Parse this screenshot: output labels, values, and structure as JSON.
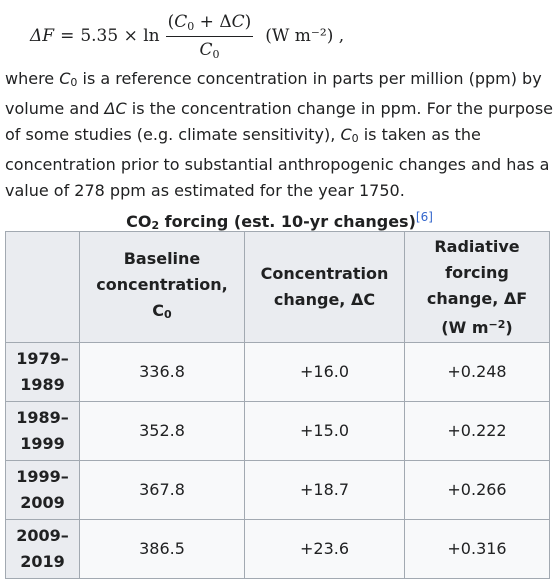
{
  "formula": {
    "lhs": "ΔF",
    "eq": "=",
    "coefficient": "5.35 × ln",
    "numerator": "(C0 + ΔC)",
    "denominator": "C0",
    "units": "(W m⁻²) ,"
  },
  "paragraph": {
    "t1": "where ",
    "c0": "C",
    "c0_sub": "0",
    "t2": " is a reference concentration in parts per million (ppm) by volume and ",
    "dc": "ΔC",
    "t3": " is the concentration change in ppm. For the purpose of some studies (e.g. climate sensitivity), ",
    "c0b": "C",
    "c0b_sub": "0",
    "t4": " is taken as the concentration prior to substantial anthropogenic changes and has a value of 278 ppm as estimated for the year 1750."
  },
  "table": {
    "caption_pre": "CO",
    "caption_sub": "2",
    "caption_post": " forcing (est. 10-yr changes)",
    "caption_ref": "[6]",
    "headers": {
      "baseline_line1": "Baseline",
      "baseline_line2": "concentration,",
      "baseline_sym": "C",
      "baseline_sub": "0",
      "conc_line1": "Concentration",
      "conc_line2": "change, ΔC",
      "rad_line1": "Radiative",
      "rad_line2": "forcing",
      "rad_line3": "change, ΔF",
      "rad_units_pre": "(W m",
      "rad_units_sup": "−2",
      "rad_units_post": ")"
    },
    "rows": [
      {
        "period_a": "1979–",
        "period_b": "1989",
        "baseline": "336.8",
        "change": "+16.0",
        "forcing": "+0.248"
      },
      {
        "period_a": "1989–",
        "period_b": "1999",
        "baseline": "352.8",
        "change": "+15.0",
        "forcing": "+0.222"
      },
      {
        "period_a": "1999–",
        "period_b": "2009",
        "baseline": "367.8",
        "change": "+18.7",
        "forcing": "+0.266"
      },
      {
        "period_a": "2009–",
        "period_b": "2019",
        "baseline": "386.5",
        "change": "+23.6",
        "forcing": "+0.316"
      }
    ]
  }
}
